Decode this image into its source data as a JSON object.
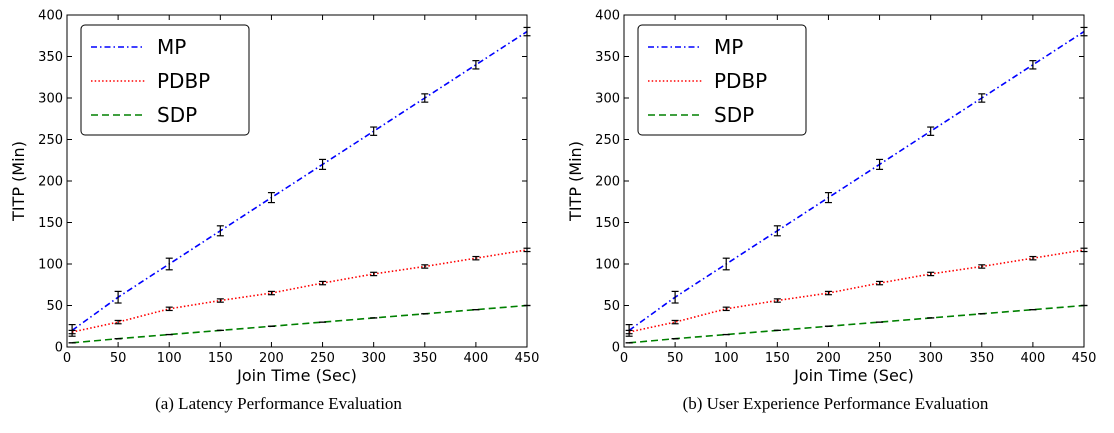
{
  "chart_data": [
    {
      "type": "line",
      "caption": "(a) Latency Performance Evaluation",
      "xlabel": "Join Time (Sec)",
      "ylabel": "TITP (Min)",
      "xlim": [
        0,
        450
      ],
      "ylim": [
        0,
        400
      ],
      "xticks": [
        0,
        50,
        100,
        150,
        200,
        250,
        300,
        350,
        400,
        450
      ],
      "yticks": [
        0,
        50,
        100,
        150,
        200,
        250,
        300,
        350,
        400
      ],
      "grid": false,
      "legend": "top-left",
      "x": [
        5,
        50,
        100,
        150,
        200,
        250,
        300,
        350,
        400,
        450
      ],
      "series": [
        {
          "name": "MP",
          "color": "#0000ff",
          "dash": "dashdot",
          "values": [
            20,
            60,
            100,
            140,
            180,
            220,
            260,
            300,
            340,
            380
          ],
          "errors": [
            7,
            7,
            7,
            6,
            6,
            6,
            5,
            5,
            5,
            5
          ]
        },
        {
          "name": "PDBP",
          "color": "#ff0000",
          "dash": "dotted",
          "values": [
            18,
            30,
            46,
            56,
            65,
            77,
            88,
            97,
            107,
            117
          ],
          "errors": [
            2,
            2,
            2,
            2,
            2,
            2,
            2,
            2,
            2,
            2
          ]
        },
        {
          "name": "SDP",
          "color": "#008000",
          "dash": "dashed",
          "values": [
            5,
            10,
            15,
            20,
            25,
            30,
            35,
            40,
            45,
            50
          ],
          "errors": [
            0,
            0,
            0,
            0,
            0,
            0,
            0,
            0,
            0,
            0
          ]
        }
      ]
    },
    {
      "type": "line",
      "caption": "(b) User Experience Performance Evaluation",
      "xlabel": "Join Time (Sec)",
      "ylabel": "TITP (Min)",
      "xlim": [
        0,
        450
      ],
      "ylim": [
        0,
        400
      ],
      "xticks": [
        0,
        50,
        100,
        150,
        200,
        250,
        300,
        350,
        400,
        450
      ],
      "yticks": [
        0,
        50,
        100,
        150,
        200,
        250,
        300,
        350,
        400
      ],
      "grid": false,
      "legend": "top-left",
      "x": [
        5,
        50,
        100,
        150,
        200,
        250,
        300,
        350,
        400,
        450
      ],
      "series": [
        {
          "name": "MP",
          "color": "#0000ff",
          "dash": "dashdot",
          "values": [
            20,
            60,
            100,
            140,
            180,
            220,
            260,
            300,
            340,
            380
          ],
          "errors": [
            7,
            7,
            7,
            6,
            6,
            6,
            5,
            5,
            5,
            5
          ]
        },
        {
          "name": "PDBP",
          "color": "#ff0000",
          "dash": "dotted",
          "values": [
            18,
            30,
            46,
            56,
            65,
            77,
            88,
            97,
            107,
            117
          ],
          "errors": [
            2,
            2,
            2,
            2,
            2,
            2,
            2,
            2,
            2,
            2
          ]
        },
        {
          "name": "SDP",
          "color": "#008000",
          "dash": "dashed",
          "values": [
            5,
            10,
            15,
            20,
            25,
            30,
            35,
            40,
            45,
            50
          ],
          "errors": [
            0,
            0,
            0,
            0,
            0,
            0,
            0,
            0,
            0,
            0
          ]
        }
      ]
    }
  ]
}
